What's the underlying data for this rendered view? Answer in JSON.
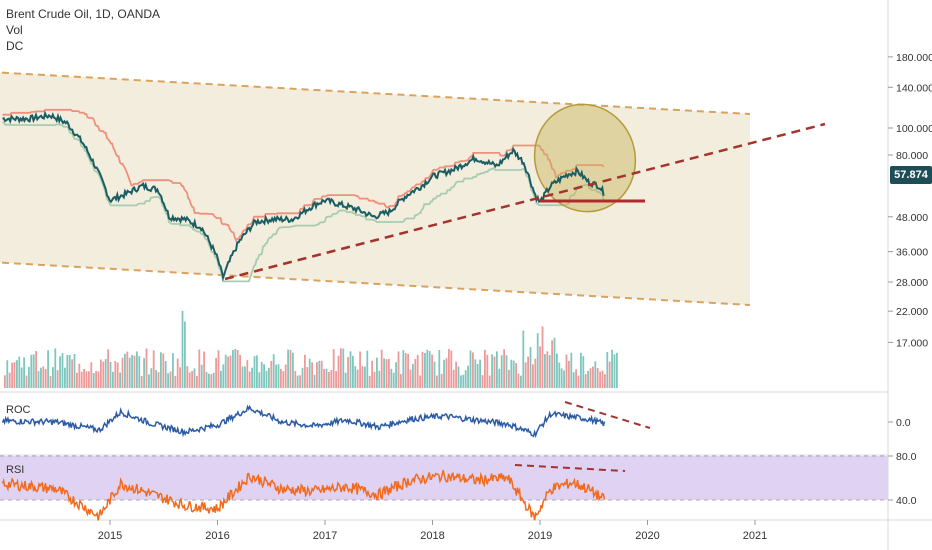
{
  "legend": {
    "title": "Brent Crude Oil, 1D, OANDA",
    "vol": "Vol",
    "dc": "DC"
  },
  "price_tag": "57.874",
  "colors": {
    "price": "#1a5e63",
    "donchian_upper": "#f08f7c",
    "donchian_lower": "#a8cbb2",
    "channel_fill": "#f3eddd",
    "channel_border": "#d9a35f",
    "trendline": "#a5332d",
    "support": "#b3282d",
    "ellipse": "#c9b45a",
    "roc": "#2b5ba5",
    "rsi": "#f26b1d",
    "rsi_band": "#e0d2f2",
    "vol_up": "#7fc6bd",
    "vol_down": "#ef9a9a"
  },
  "chart_data": [
    {
      "type": "line",
      "name": "price",
      "title": "Brent Crude Oil, 1D, OANDA",
      "x": [
        2014.0,
        2014.25,
        2014.45,
        2014.6,
        2014.75,
        2014.9,
        2015.0,
        2015.15,
        2015.3,
        2015.45,
        2015.55,
        2015.7,
        2015.85,
        2016.0,
        2016.05,
        2016.2,
        2016.35,
        2016.5,
        2016.7,
        2016.9,
        2017.0,
        2017.15,
        2017.3,
        2017.45,
        2017.6,
        2017.75,
        2017.9,
        2018.0,
        2018.2,
        2018.4,
        2018.6,
        2018.75,
        2018.85,
        2018.95,
        2019.0,
        2019.1,
        2019.25,
        2019.35,
        2019.45,
        2019.55,
        2019.6
      ],
      "y": [
        108,
        108,
        111,
        104,
        88,
        68,
        55,
        58,
        62,
        60,
        48,
        47,
        44,
        34,
        29,
        39,
        46,
        47,
        47,
        53,
        55,
        53,
        51,
        48,
        50,
        57,
        62,
        67,
        71,
        78,
        73,
        83,
        75,
        58,
        54,
        62,
        68,
        70,
        64,
        62,
        57.874
      ],
      "yticks": [
        "180.000",
        "140.000",
        "100.000",
        "80.000",
        "48.000",
        "36.000",
        "28.000",
        "22.000",
        "17.000"
      ],
      "ylabel_current": "57.874",
      "xticks": [
        "2015",
        "2016",
        "2017",
        "2018",
        "2019",
        "2020",
        "2021"
      ],
      "yscale": "log",
      "annotations": [
        "descending channel",
        "rising trendline",
        "support line",
        "ellipse"
      ]
    },
    {
      "type": "bar",
      "name": "Vol"
    },
    {
      "type": "line",
      "name": "ROC",
      "x": [
        2014.0,
        2014.5,
        2014.9,
        2015.1,
        2015.4,
        2015.7,
        2016.0,
        2016.3,
        2016.6,
        2016.9,
        2017.2,
        2017.5,
        2017.8,
        2018.1,
        2018.4,
        2018.7,
        2018.95,
        2019.1,
        2019.3,
        2019.45,
        2019.6
      ],
      "y": [
        1,
        0,
        -8,
        10,
        -2,
        -10,
        -3,
        14,
        0,
        -4,
        2,
        -5,
        3,
        6,
        2,
        -2,
        -12,
        8,
        5,
        3,
        -2
      ],
      "yticks": [
        "0.0"
      ],
      "ylabel": "ROC"
    },
    {
      "type": "line",
      "name": "RSI",
      "x": [
        2014.0,
        2014.5,
        2014.9,
        2015.1,
        2015.4,
        2015.7,
        2016.0,
        2016.3,
        2016.6,
        2016.9,
        2017.2,
        2017.5,
        2017.8,
        2018.1,
        2018.4,
        2018.7,
        2018.95,
        2019.1,
        2019.3,
        2019.45,
        2019.6
      ],
      "y": [
        55,
        50,
        25,
        55,
        45,
        35,
        32,
        62,
        50,
        48,
        52,
        45,
        58,
        62,
        58,
        60,
        24,
        50,
        56,
        50,
        40
      ],
      "yticks": [
        "80.0",
        "40.0"
      ],
      "ylabel": "RSI",
      "ylim": [
        20,
        80
      ]
    }
  ]
}
